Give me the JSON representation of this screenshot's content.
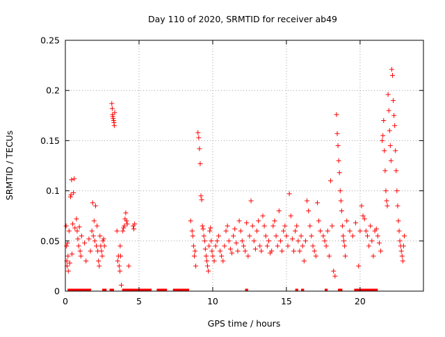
{
  "chart_data": {
    "type": "scatter",
    "title": "Day 110 of 2020, SRMTID for receiver ab49",
    "xlabel": "GPS time / hours",
    "ylabel": "SRMTID / TECUs",
    "xlim": [
      0,
      24.3
    ],
    "ylim": [
      0,
      0.25
    ],
    "x_ticks": [
      0,
      5,
      10,
      15,
      20
    ],
    "x_tick_labels": [
      "0",
      "5",
      "10",
      "15",
      "20"
    ],
    "y_ticks": [
      0,
      0.05,
      0.1,
      0.15,
      0.2,
      0.25
    ],
    "y_tick_labels": [
      "0",
      "0.05",
      "0.1",
      "0.15",
      "0.2",
      "0.25"
    ],
    "grid": true,
    "marker": "+",
    "series": [
      {
        "name": "SRMTID",
        "color": "#ff0000",
        "points": [
          [
            0.05,
            0.065
          ],
          [
            0.08,
            0.045
          ],
          [
            0.1,
            0.03
          ],
          [
            0.12,
            0.025
          ],
          [
            0.15,
            0.048
          ],
          [
            0.18,
            0.035
          ],
          [
            0.2,
            0.02
          ],
          [
            0.25,
            0.06
          ],
          [
            0.3,
            0.028
          ],
          [
            0.35,
            0.094
          ],
          [
            0.38,
            0.096
          ],
          [
            0.42,
            0.111
          ],
          [
            0.45,
            0.037
          ],
          [
            0.5,
            0.067
          ],
          [
            0.55,
            0.098
          ],
          [
            0.6,
            0.112
          ],
          [
            0.65,
            0.063
          ],
          [
            0.75,
            0.072
          ],
          [
            0.8,
            0.06
          ],
          [
            0.85,
            0.052
          ],
          [
            0.9,
            0.045
          ],
          [
            0.95,
            0.064
          ],
          [
            1.0,
            0.04
          ],
          [
            1.05,
            0.035
          ],
          [
            1.1,
            0.055
          ],
          [
            1.3,
            0.048
          ],
          [
            1.4,
            0.03
          ],
          [
            1.6,
            0.052
          ],
          [
            1.7,
            0.04
          ],
          [
            1.8,
            0.06
          ],
          [
            1.85,
            0.088
          ],
          [
            1.9,
            0.055
          ],
          [
            1.95,
            0.07
          ],
          [
            2.0,
            0.05
          ],
          [
            2.05,
            0.085
          ],
          [
            2.1,
            0.045
          ],
          [
            2.15,
            0.065
          ],
          [
            2.2,
            0.04
          ],
          [
            2.25,
            0.03
          ],
          [
            2.3,
            0.025
          ],
          [
            2.35,
            0.055
          ],
          [
            2.4,
            0.045
          ],
          [
            2.45,
            0.04
          ],
          [
            2.5,
            0.035
          ],
          [
            2.55,
            0.05
          ],
          [
            2.6,
            0.052
          ],
          [
            2.65,
            0.045
          ],
          [
            3.15,
            0.187
          ],
          [
            3.18,
            0.182
          ],
          [
            3.2,
            0.176
          ],
          [
            3.22,
            0.174
          ],
          [
            3.25,
            0.172
          ],
          [
            3.28,
            0.17
          ],
          [
            3.3,
            0.168
          ],
          [
            3.32,
            0.165
          ],
          [
            3.35,
            0.178
          ],
          [
            3.5,
            0.06
          ],
          [
            3.55,
            0.03
          ],
          [
            3.6,
            0.035
          ],
          [
            3.65,
            0.025
          ],
          [
            3.7,
            0.02
          ],
          [
            3.72,
            0.045
          ],
          [
            3.75,
            0.035
          ],
          [
            3.8,
            0.006
          ],
          [
            3.9,
            0.06
          ],
          [
            3.95,
            0.063
          ],
          [
            4.0,
            0.065
          ],
          [
            4.05,
            0.072
          ],
          [
            4.1,
            0.078
          ],
          [
            4.15,
            0.07
          ],
          [
            4.2,
            0.067
          ],
          [
            4.3,
            0.025
          ],
          [
            4.6,
            0.065
          ],
          [
            4.65,
            0.062
          ],
          [
            4.7,
            0.067
          ],
          [
            8.5,
            0.07
          ],
          [
            8.6,
            0.06
          ],
          [
            8.65,
            0.055
          ],
          [
            8.7,
            0.045
          ],
          [
            8.75,
            0.035
          ],
          [
            8.8,
            0.04
          ],
          [
            8.85,
            0.025
          ],
          [
            9.0,
            0.158
          ],
          [
            9.05,
            0.153
          ],
          [
            9.1,
            0.142
          ],
          [
            9.15,
            0.127
          ],
          [
            9.2,
            0.095
          ],
          [
            9.25,
            0.091
          ],
          [
            9.3,
            0.065
          ],
          [
            9.35,
            0.062
          ],
          [
            9.4,
            0.055
          ],
          [
            9.45,
            0.05
          ],
          [
            9.5,
            0.042
          ],
          [
            9.55,
            0.035
          ],
          [
            9.6,
            0.03
          ],
          [
            9.65,
            0.025
          ],
          [
            9.7,
            0.02
          ],
          [
            9.75,
            0.045
          ],
          [
            9.8,
            0.06
          ],
          [
            9.85,
            0.063
          ],
          [
            9.9,
            0.05
          ],
          [
            9.95,
            0.04
          ],
          [
            10.0,
            0.035
          ],
          [
            10.1,
            0.03
          ],
          [
            10.2,
            0.045
          ],
          [
            10.3,
            0.05
          ],
          [
            10.4,
            0.055
          ],
          [
            10.5,
            0.04
          ],
          [
            10.6,
            0.035
          ],
          [
            10.7,
            0.03
          ],
          [
            10.8,
            0.045
          ],
          [
            10.9,
            0.06
          ],
          [
            11.0,
            0.065
          ],
          [
            11.1,
            0.05
          ],
          [
            11.2,
            0.042
          ],
          [
            11.3,
            0.038
          ],
          [
            11.4,
            0.055
          ],
          [
            11.5,
            0.062
          ],
          [
            11.6,
            0.048
          ],
          [
            11.7,
            0.04
          ],
          [
            11.8,
            0.07
          ],
          [
            11.9,
            0.06
          ],
          [
            12.0,
            0.05
          ],
          [
            12.1,
            0.045
          ],
          [
            12.2,
            0.04
          ],
          [
            12.3,
            0.068
          ],
          [
            12.4,
            0.035
          ],
          [
            12.5,
            0.055
          ],
          [
            12.6,
            0.09
          ],
          [
            12.7,
            0.065
          ],
          [
            12.8,
            0.05
          ],
          [
            12.9,
            0.042
          ],
          [
            13.0,
            0.06
          ],
          [
            13.1,
            0.07
          ],
          [
            13.2,
            0.045
          ],
          [
            13.3,
            0.04
          ],
          [
            13.4,
            0.075
          ],
          [
            13.5,
            0.065
          ],
          [
            13.6,
            0.055
          ],
          [
            13.7,
            0.045
          ],
          [
            13.8,
            0.05
          ],
          [
            13.9,
            0.038
          ],
          [
            14.0,
            0.04
          ],
          [
            14.1,
            0.065
          ],
          [
            14.2,
            0.07
          ],
          [
            14.3,
            0.055
          ],
          [
            14.4,
            0.045
          ],
          [
            14.5,
            0.08
          ],
          [
            14.6,
            0.05
          ],
          [
            14.7,
            0.04
          ],
          [
            14.8,
            0.06
          ],
          [
            14.9,
            0.065
          ],
          [
            15.0,
            0.055
          ],
          [
            15.1,
            0.045
          ],
          [
            15.2,
            0.097
          ],
          [
            15.3,
            0.075
          ],
          [
            15.4,
            0.052
          ],
          [
            15.5,
            0.04
          ],
          [
            15.6,
            0.06
          ],
          [
            15.7,
            0.065
          ],
          [
            15.8,
            0.05
          ],
          [
            15.9,
            0.04
          ],
          [
            16.0,
            0.055
          ],
          [
            16.1,
            0.045
          ],
          [
            16.2,
            0.03
          ],
          [
            16.3,
            0.05
          ],
          [
            16.4,
            0.09
          ],
          [
            16.5,
            0.08
          ],
          [
            16.6,
            0.065
          ],
          [
            16.7,
            0.055
          ],
          [
            16.8,
            0.045
          ],
          [
            16.9,
            0.04
          ],
          [
            17.0,
            0.035
          ],
          [
            17.1,
            0.088
          ],
          [
            17.2,
            0.07
          ],
          [
            17.3,
            0.06
          ],
          [
            17.5,
            0.055
          ],
          [
            17.6,
            0.05
          ],
          [
            17.7,
            0.045
          ],
          [
            17.8,
            0.06
          ],
          [
            17.9,
            0.035
          ],
          [
            18.0,
            0.11
          ],
          [
            18.1,
            0.065
          ],
          [
            18.2,
            0.02
          ],
          [
            18.3,
            0.015
          ],
          [
            18.4,
            0.176
          ],
          [
            18.45,
            0.157
          ],
          [
            18.5,
            0.145
          ],
          [
            18.55,
            0.13
          ],
          [
            18.6,
            0.118
          ],
          [
            18.65,
            0.1
          ],
          [
            18.7,
            0.09
          ],
          [
            18.75,
            0.08
          ],
          [
            18.8,
            0.065
          ],
          [
            18.85,
            0.055
          ],
          [
            18.9,
            0.05
          ],
          [
            18.95,
            0.045
          ],
          [
            19.0,
            0.035
          ],
          [
            19.1,
            0.07
          ],
          [
            19.3,
            0.06
          ],
          [
            19.5,
            0.055
          ],
          [
            19.7,
            0.068
          ],
          [
            19.9,
            0.025
          ],
          [
            20.0,
            0.06
          ],
          [
            20.1,
            0.085
          ],
          [
            20.2,
            0.075
          ],
          [
            20.3,
            0.072
          ],
          [
            20.4,
            0.06
          ],
          [
            20.5,
            0.055
          ],
          [
            20.6,
            0.045
          ],
          [
            20.7,
            0.065
          ],
          [
            20.8,
            0.05
          ],
          [
            20.9,
            0.035
          ],
          [
            21.0,
            0.06
          ],
          [
            21.1,
            0.062
          ],
          [
            21.2,
            0.055
          ],
          [
            21.3,
            0.048
          ],
          [
            21.4,
            0.04
          ],
          [
            21.5,
            0.15
          ],
          [
            21.55,
            0.155
          ],
          [
            21.6,
            0.17
          ],
          [
            21.65,
            0.14
          ],
          [
            21.7,
            0.12
          ],
          [
            21.75,
            0.1
          ],
          [
            21.8,
            0.09
          ],
          [
            21.85,
            0.085
          ],
          [
            21.9,
            0.196
          ],
          [
            21.95,
            0.18
          ],
          [
            22.0,
            0.16
          ],
          [
            22.05,
            0.145
          ],
          [
            22.1,
            0.13
          ],
          [
            22.15,
            0.221
          ],
          [
            22.2,
            0.215
          ],
          [
            22.25,
            0.19
          ],
          [
            22.3,
            0.175
          ],
          [
            22.35,
            0.165
          ],
          [
            22.4,
            0.14
          ],
          [
            22.45,
            0.12
          ],
          [
            22.5,
            0.1
          ],
          [
            22.55,
            0.085
          ],
          [
            22.6,
            0.07
          ],
          [
            22.65,
            0.06
          ],
          [
            22.7,
            0.05
          ],
          [
            22.75,
            0.045
          ],
          [
            22.8,
            0.04
          ],
          [
            22.85,
            0.035
          ],
          [
            22.9,
            0.03
          ],
          [
            22.95,
            0.045
          ],
          [
            23.0,
            0.055
          ]
        ]
      }
    ],
    "zero_bands": [
      [
        0.15,
        1.75
      ],
      [
        2.5,
        2.8
      ],
      [
        3.0,
        3.3
      ],
      [
        3.85,
        5.85
      ],
      [
        6.2,
        6.9
      ],
      [
        7.3,
        8.4
      ],
      [
        12.2,
        12.4
      ],
      [
        15.6,
        15.8
      ],
      [
        16.0,
        16.2
      ],
      [
        17.6,
        17.8
      ],
      [
        18.5,
        18.8
      ],
      [
        19.6,
        21.2
      ]
    ]
  }
}
